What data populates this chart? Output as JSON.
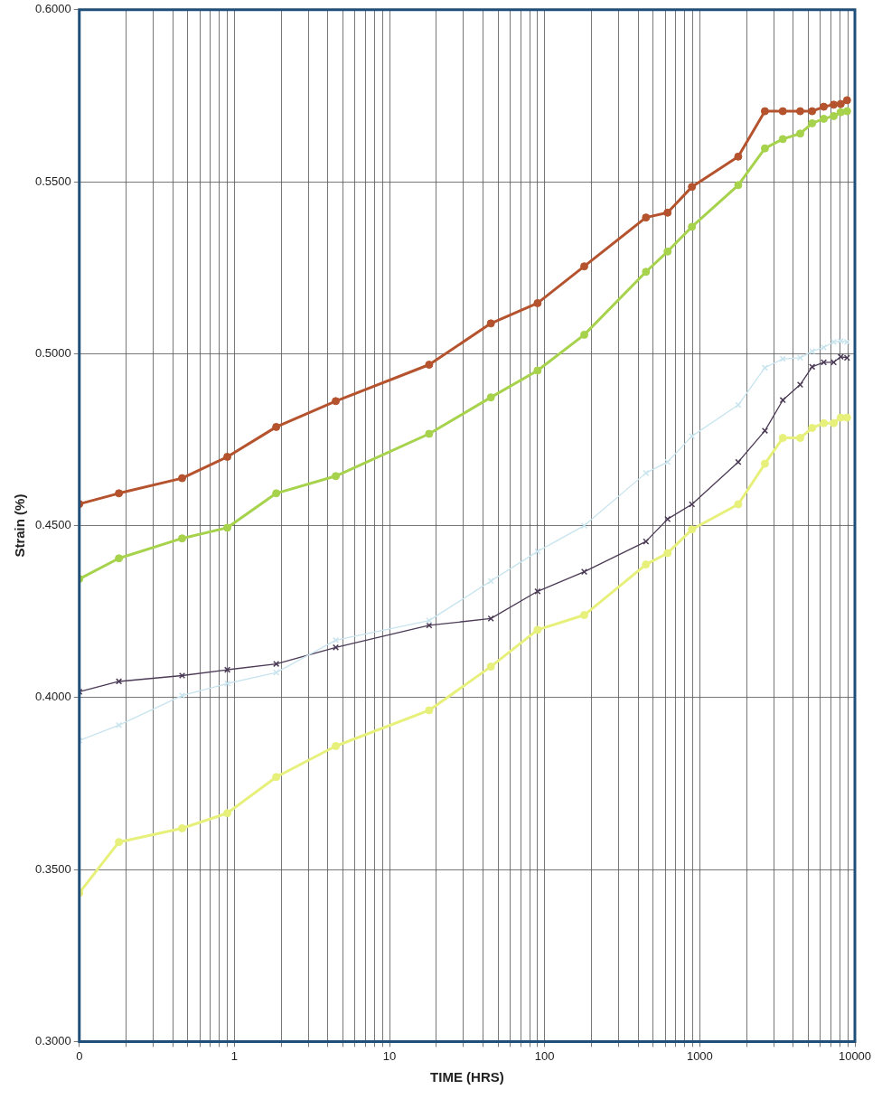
{
  "chart_data": {
    "type": "line",
    "xlabel": "TIME (HRS)",
    "ylabel": "Strain (%)",
    "log": "x",
    "grid": true,
    "legend": false,
    "x": [
      0.1,
      0.18,
      0.46,
      0.9,
      1.86,
      4.5,
      18,
      45,
      90,
      180,
      450,
      620,
      890,
      1770,
      2630,
      3430,
      4440,
      5300,
      6300,
      7300,
      8100,
      8900
    ],
    "xlim": [
      0.1,
      10000
    ],
    "xticks": [
      {
        "value": 0.1,
        "label": "0"
      },
      {
        "value": 0.2,
        "label": null
      },
      {
        "value": 0.3,
        "label": null
      },
      {
        "value": 0.4,
        "label": null
      },
      {
        "value": 0.5,
        "label": null
      },
      {
        "value": 0.6,
        "label": null
      },
      {
        "value": 0.7,
        "label": null
      },
      {
        "value": 0.8,
        "label": null
      },
      {
        "value": 0.9,
        "label": null
      },
      1,
      {
        "value": 2,
        "label": null
      },
      {
        "value": 3,
        "label": null
      },
      {
        "value": 4,
        "label": null
      },
      {
        "value": 5,
        "label": null
      },
      {
        "value": 6,
        "label": null
      },
      {
        "value": 7,
        "label": null
      },
      {
        "value": 8,
        "label": null
      },
      {
        "value": 9,
        "label": null
      },
      10,
      {
        "value": 20,
        "label": null
      },
      {
        "value": 30,
        "label": null
      },
      {
        "value": 40,
        "label": null
      },
      {
        "value": 50,
        "label": null
      },
      {
        "value": 60,
        "label": null
      },
      {
        "value": 70,
        "label": null
      },
      {
        "value": 80,
        "label": null
      },
      {
        "value": 90,
        "label": null
      },
      100,
      {
        "value": 200,
        "label": null
      },
      {
        "value": 300,
        "label": null
      },
      {
        "value": 400,
        "label": null
      },
      {
        "value": 500,
        "label": null
      },
      {
        "value": 600,
        "label": null
      },
      {
        "value": 700,
        "label": null
      },
      {
        "value": 800,
        "label": null
      },
      {
        "value": 900,
        "label": null
      },
      1000,
      {
        "value": 2000,
        "label": null
      },
      {
        "value": 3000,
        "label": null
      },
      {
        "value": 4000,
        "label": null
      },
      {
        "value": 5000,
        "label": null
      },
      {
        "value": 6000,
        "label": null
      },
      {
        "value": 7000,
        "label": null
      },
      {
        "value": 8000,
        "label": null
      },
      {
        "value": 9000,
        "label": null
      },
      10000
    ],
    "ylim": [
      0.3,
      0.6
    ],
    "yticks": [
      {
        "value": 0.3,
        "label": "0.3000"
      },
      {
        "value": 0.35,
        "label": "0.3500"
      },
      {
        "value": 0.4,
        "label": "0.4000"
      },
      {
        "value": 0.45,
        "label": "0.4500"
      },
      {
        "value": 0.5,
        "label": "0.5000"
      },
      {
        "value": 0.55,
        "label": "0.5500"
      },
      {
        "value": 0.6,
        "label": "0.6000"
      }
    ],
    "series": [
      {
        "color": "#b4532e",
        "marker": "circle",
        "values": [
          0.4563,
          0.4594,
          0.4638,
          0.47,
          0.4787,
          0.4862,
          0.4968,
          0.5088,
          0.5147,
          0.5254,
          0.5396,
          0.541,
          0.5485,
          0.5573,
          0.5705,
          0.5705,
          0.5705,
          0.5705,
          0.5718,
          0.5724,
          0.5726,
          0.5737
        ]
      },
      {
        "color": "#a6d24c",
        "marker": "circle",
        "values": [
          0.4345,
          0.4405,
          0.4463,
          0.4494,
          0.4594,
          0.4644,
          0.4767,
          0.4873,
          0.4951,
          0.5055,
          0.5238,
          0.5297,
          0.5369,
          0.549,
          0.5597,
          0.5624,
          0.564,
          0.567,
          0.5683,
          0.5691,
          0.5702,
          0.5705
        ]
      },
      {
        "color": "#c8e4ee",
        "marker": "cross",
        "values": [
          0.3875,
          0.392,
          0.4006,
          0.4041,
          0.4073,
          0.4167,
          0.4224,
          0.4339,
          0.4425,
          0.45,
          0.4653,
          0.4685,
          0.476,
          0.4851,
          0.4959,
          0.4985,
          0.4988,
          0.5007,
          0.5018,
          0.5034,
          0.5037,
          0.5034
        ]
      },
      {
        "color": "#4a3a55",
        "marker": "cross",
        "values": [
          0.4017,
          0.4047,
          0.4064,
          0.4081,
          0.4098,
          0.4146,
          0.421,
          0.423,
          0.4309,
          0.4366,
          0.4454,
          0.4519,
          0.4562,
          0.4685,
          0.4776,
          0.4865,
          0.491,
          0.4962,
          0.4975,
          0.4975,
          0.4991,
          0.4988
        ]
      },
      {
        "color": "#e6f07a",
        "marker": "circle",
        "values": [
          0.3432,
          0.358,
          0.362,
          0.3664,
          0.3769,
          0.3859,
          0.3963,
          0.409,
          0.4197,
          0.424,
          0.4387,
          0.442,
          0.4489,
          0.4562,
          0.468,
          0.4755,
          0.4755,
          0.4784,
          0.4798,
          0.4798,
          0.4814,
          0.4814
        ]
      }
    ]
  }
}
